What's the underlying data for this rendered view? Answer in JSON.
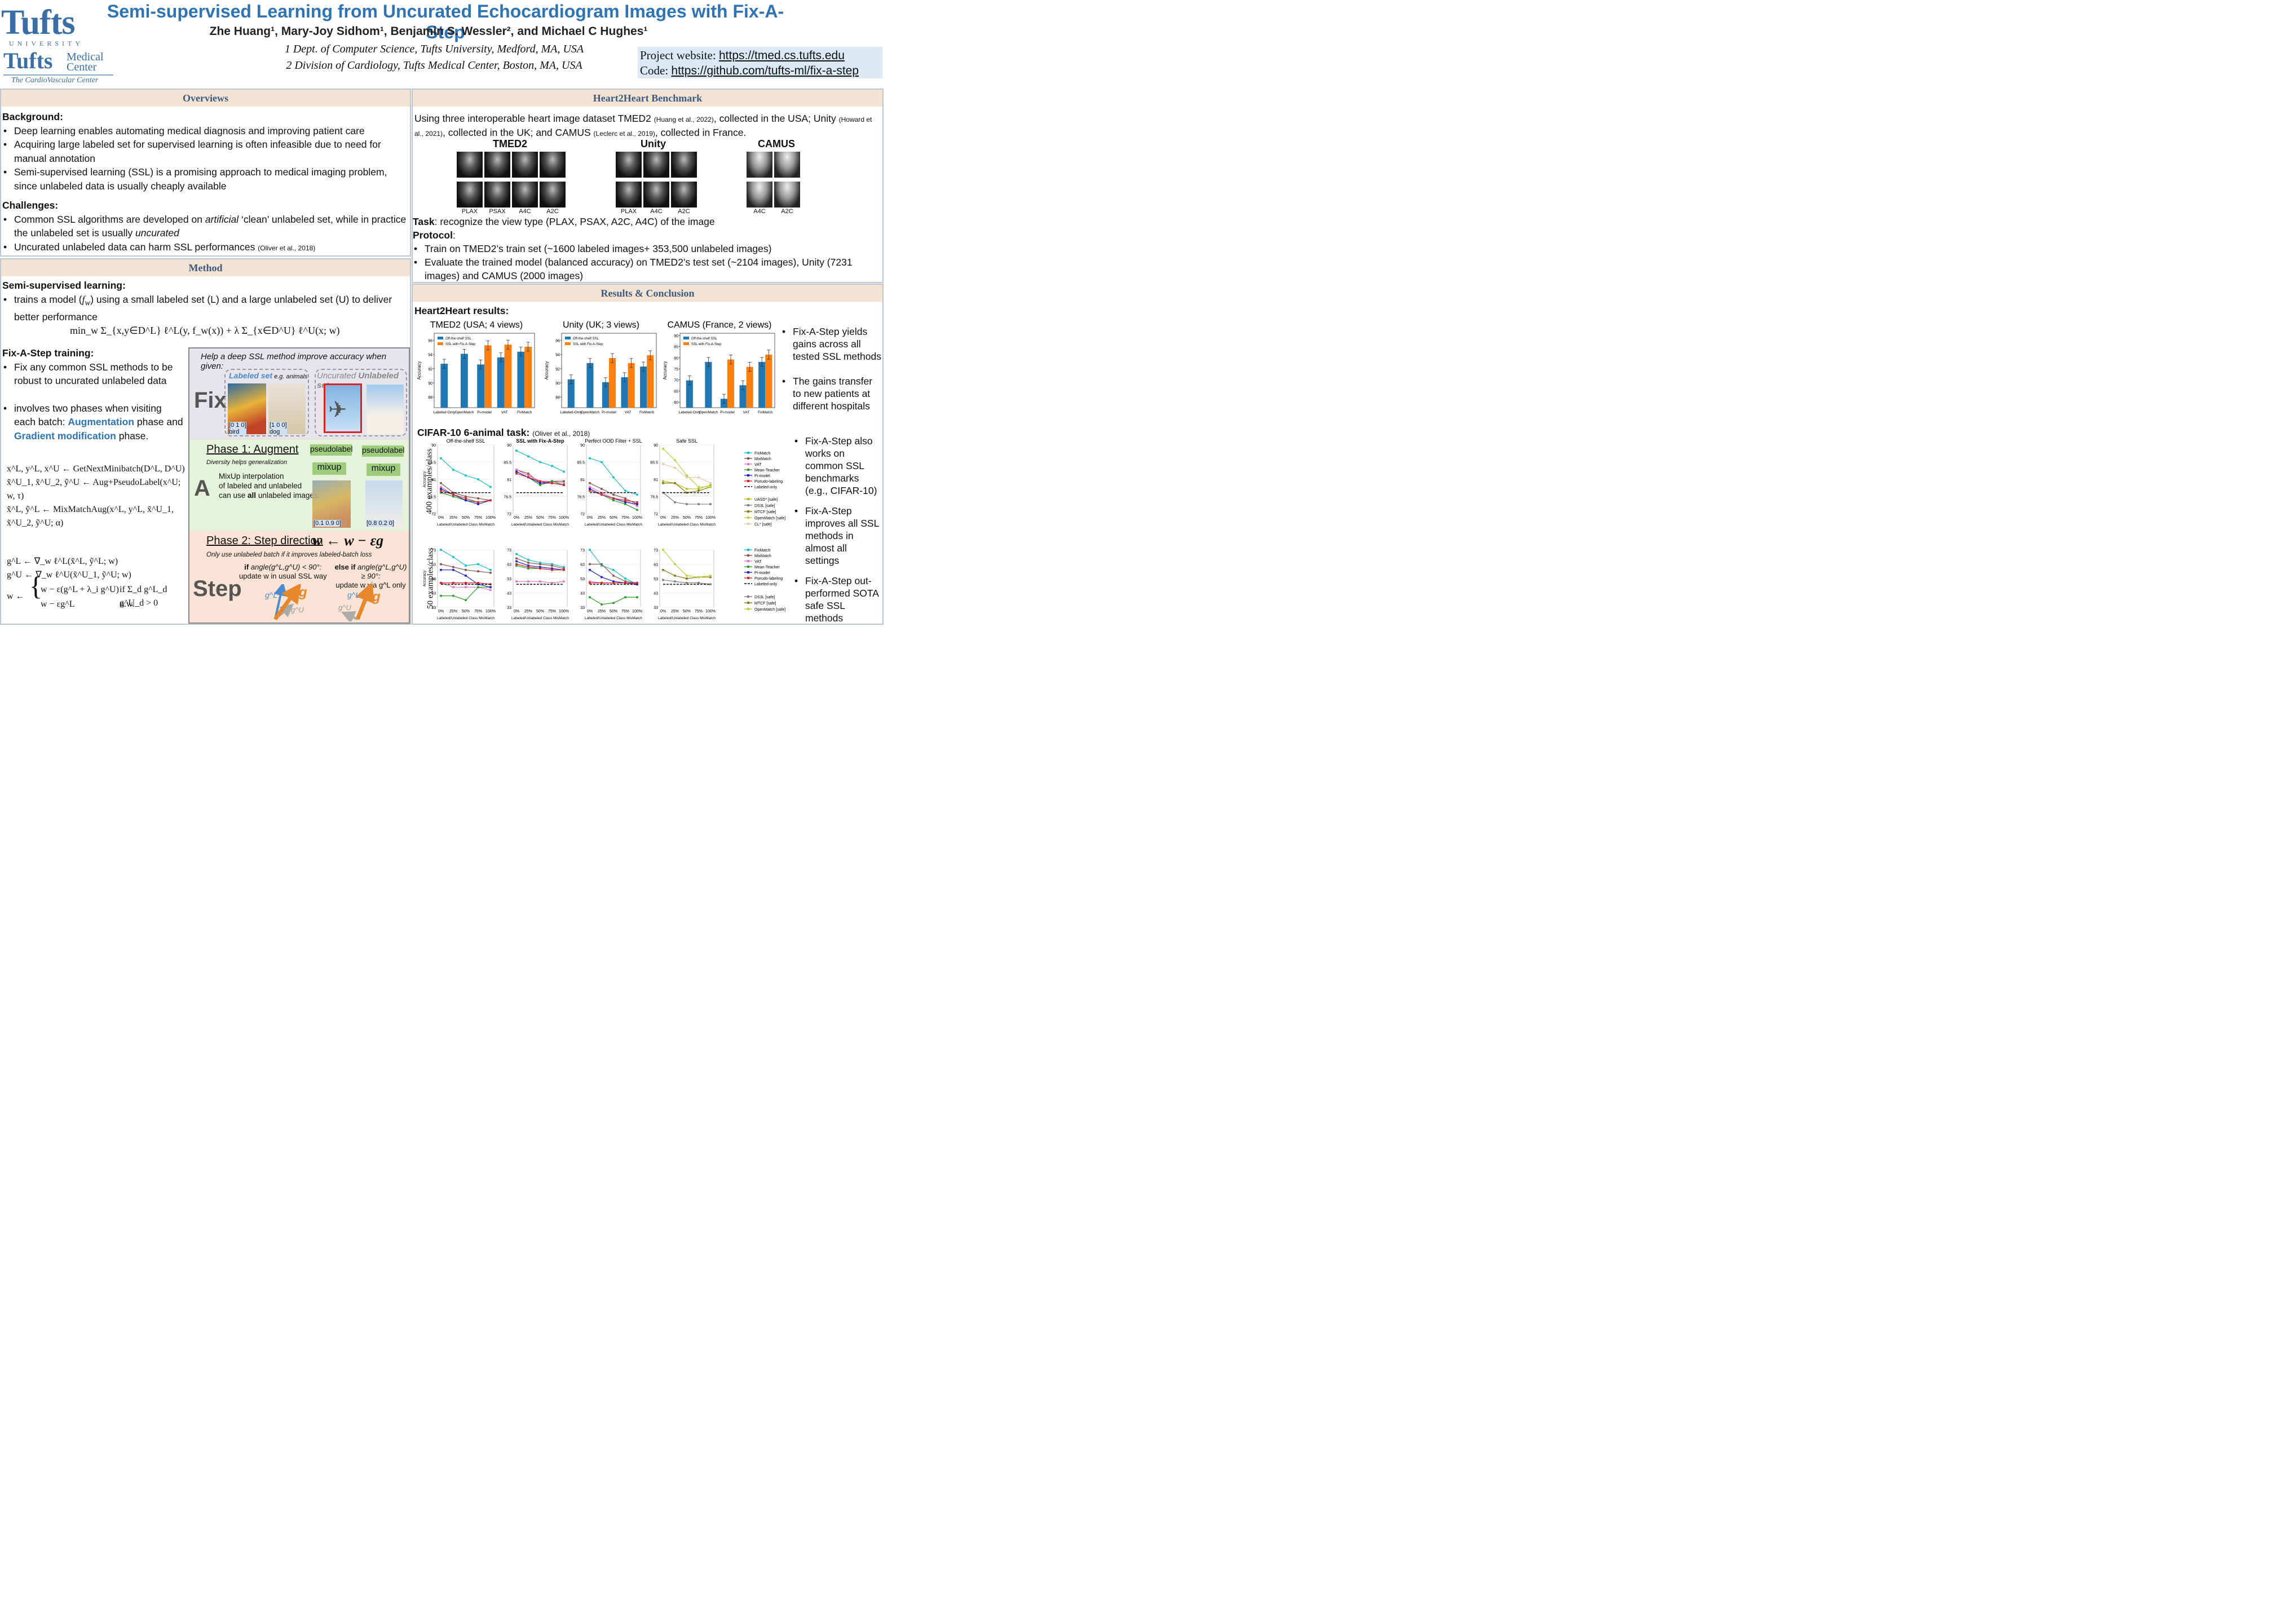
{
  "header": {
    "title": "Semi-supervised Learning from Uncurated Echocardiogram Images with Fix-A-Step",
    "authors": "Zhe Huang¹, Mary-Joy Sidhom¹, Benjamin S. Wessler², and Michael C Hughes¹",
    "aff1": "1 Dept. of Computer Science, Tufts University, Medford, MA, USA",
    "aff2": "2 Division of Cardiology, Tufts Medical Center, Boston, MA, USA",
    "project_label": "Project website: ",
    "project_url": "https://tmed.cs.tufts.edu",
    "code_label": "Code: ",
    "code_url": "https://github.com/tufts-ml/fix-a-step",
    "logo1": "Tufts",
    "logo1_sub": "UNIVERSITY",
    "logo2": "Tufts",
    "logo2_a": "Medical",
    "logo2_b": "Center",
    "logo2_sub": "The CardioVascular Center"
  },
  "overviews": {
    "heading": "Overviews",
    "background_title": "Background:",
    "background": [
      "Deep learning enables automating medical diagnosis and improving patient care",
      "Acquiring large labeled set for supervised learning is often infeasible due to need for manual annotation",
      "Semi-supervised learning (SSL) is a promising approach to medical imaging problem, since unlabeled data is usually cheaply available"
    ],
    "challenges_title": "Challenges:",
    "ch1_a": "Common SSL algorithms are developed on ",
    "ch1_b": "artificial",
    "ch1_c": " ‘clean’ unlabeled set, while in practice the unlabeled set is usually ",
    "ch1_d": "uncurated",
    "ch2": "Uncurated unlabeled data can harm SSL performances ",
    "ch2_cite": "(Oliver et al., 2018)"
  },
  "method": {
    "heading": "Method",
    "ssl_title": "Semi-supervised learning:",
    "ssl_a": "trains a model (",
    "ssl_fw": "f",
    "ssl_w": "w",
    "ssl_b": ") using a small labeled set (L) and a large unlabeled set (U) to deliver better performance",
    "objective": "min_w  Σ_{x,y∈D^L} ℓ^L(y, f_w(x)) + λ Σ_{x∈D^U} ℓ^U(x; w)",
    "fix_title": "Fix-A-Step training:",
    "fix1": "Fix any common SSL methods to be robust to uncurated unlabeled data",
    "fix2_a": "involves two phases when visiting each batch: ",
    "fix2_aug": "Augmentation",
    "fix2_b": " phase and ",
    "fix2_grad": "Gradient modification",
    "fix2_c": " phase.",
    "algo1": "x^L, y^L, x^U ← GetNextMinibatch(D^L, D^U)",
    "algo2": "x̃^U_1, x̃^U_2, ỹ^U ← Aug+PseudoLabel(x^U; w, τ)",
    "algo3": "x̃^L, ỹ^L ← MixMatchAug(x^L, y^L, x̃^U_1, x̃^U_2, ỹ^U; α)",
    "algo4": "g^L ← ∇_w ℓ^L(x̃^L, ỹ^L; w)",
    "algo5": "g^U ← ∇_w ℓ^U(x̃^U_1, ỹ^U; w)",
    "algo6a": "w − ε(g^L + λ_i g^U)",
    "algo6b": "if Σ_d g^L_d g^U_d > 0",
    "algo7a": "w − εg^L",
    "algo7b": "o.w.",
    "algo_w": "w ←"
  },
  "diagram": {
    "header": "Help a deep SSL method improve accuracy when given:",
    "fix": "Fix",
    "labeled": "Labeled set",
    "labeled_eg": " e.g. animals",
    "uncurated": "Uncurated ",
    "unlabeled": "Unlabeled set",
    "bird_vec": "[0 1 0]",
    "bird": "bird",
    "dog_vec": "[1 0 0]",
    "dog": "dog",
    "pseudo1": "pseudolabel",
    "pseudo2": "pseudolabel",
    "mix1": "mixup",
    "mix2": "mixup",
    "a": "A",
    "phase1": "Phase 1: Augment",
    "phase1_sub": "Diversity helps generalization",
    "mix_text1": "MixUp interpolation",
    "mix_text2": "of labeled and unlabeled",
    "mix_text3a": "can use ",
    "mix_text3b": "all",
    "mix_text3c": " unlabeled images.",
    "out1": "[0.1  0.9  0]",
    "out2": "[0.8  0.2  0]",
    "step": "Step",
    "phase2": "Phase 2: Step direction",
    "update_rule": "w ← w − εg",
    "phase2_sub": "Only use unlabeled batch if it improves labeled-batch loss",
    "if_a": "if ",
    "if_b": "angle(g^L,g^U) < 90°:",
    "if_c": "update w in usual SSL way",
    "else_a": "else if ",
    "else_b": "angle(g^L,g^U) ≥ 90°:",
    "else_c": "update w via g^L only",
    "gL": "g^L",
    "gU": "g^U",
    "g": "g"
  },
  "benchmark": {
    "heading": "Heart2Heart Benchmark",
    "intro_a": "Using three interoperable heart image dataset TMED2 ",
    "cite1": "(Huang et al., 2022)",
    "intro_b": ", collected in the USA; Unity ",
    "cite2": "(Howard et al., 2021)",
    "intro_c": ", collected in the UK; and CAMUS ",
    "cite3": "(Leclerc et al., 2019)",
    "intro_d": ", collected in France.",
    "datasets": [
      "TMED2",
      "Unity",
      "CAMUS"
    ],
    "tmed_labels": [
      "PLAX",
      "PSAX",
      "A4C",
      "A2C"
    ],
    "unity_labels": [
      "PLAX",
      "A4C",
      "A2C"
    ],
    "camus_labels": [
      "A4C",
      "A2C"
    ],
    "task_b": "Task",
    "task": ": recognize the view type (PLAX, PSAX, A2C, A4C) of the image",
    "protocol_b": "Protocol",
    "protocol": ":",
    "p1": "Train on TMED2’s train set (~1600 labeled images+ 353,500 unlabeled images)",
    "p2": "Evaluate the trained model (balanced accuracy) on TMED2’s test set (~2104 images), Unity (7231 images) and CAMUS (2000 images)"
  },
  "results": {
    "heading": "Results & Conclusion",
    "h2h": "Heart2Heart results:",
    "cifar": "CIFAR-10 6-animal task: ",
    "cifar_cite": "(Oliver et al., 2018)",
    "row1_label": "400 examples/class",
    "row2_label": "50 examples/class",
    "conclusions": [
      "Fix-A-Step yields gains across all tested SSL methods",
      "The gains transfer to new patients at different hospitals",
      "Fix-A-Step also works on common SSL benchmarks (e.g., CIFAR-10)",
      "Fix-A-Step improves all SSL methods in almost all settings",
      "Fix-A-Step out-performed SOTA safe SSL methods"
    ]
  },
  "colors": {
    "blue": "#1f77b4",
    "orange": "#ff7f0e",
    "title": "#2e74b5"
  },
  "chart_data": [
    {
      "type": "bar",
      "title": "TMED2 (USA; 4 views)",
      "ylabel": "Accuracy",
      "ylim": [
        86.5,
        97
      ],
      "yticks": [
        88,
        90,
        92,
        94,
        96
      ],
      "categories": [
        "Labeled-Only",
        "OpenMatch",
        "Pi-model",
        "VAT",
        "FixMatch"
      ],
      "series": [
        {
          "name": "Off-the-shelf SSL",
          "values": [
            92.7,
            94.1,
            92.6,
            93.6,
            94.4
          ]
        },
        {
          "name": "SSL with Fix-A-Step",
          "values": [
            null,
            null,
            95.3,
            95.4,
            95.1
          ]
        }
      ]
    },
    {
      "type": "bar",
      "title": "Unity (UK; 3 views)",
      "ylabel": "Accuracy",
      "ylim": [
        86.5,
        97
      ],
      "yticks": [
        88,
        90,
        92,
        94,
        96
      ],
      "categories": [
        "Labeled-Only",
        "OpenMatch",
        "Pi-model",
        "VAT",
        "FixMatch"
      ],
      "series": [
        {
          "name": "Off-the-shelf SSL",
          "values": [
            90.5,
            92.8,
            90.1,
            90.8,
            92.3
          ]
        },
        {
          "name": "SSL with Fix-A-Step",
          "values": [
            null,
            null,
            93.5,
            92.8,
            93.9
          ]
        }
      ]
    },
    {
      "type": "bar",
      "title": "CAMUS (France, 2 views)",
      "ylabel": "Accuracy",
      "ylim": [
        57.5,
        91
      ],
      "yticks": [
        60,
        65,
        70,
        75,
        80,
        85,
        90
      ],
      "categories": [
        "Labeled-Only",
        "OpenMatch",
        "Pi-model",
        "VAT",
        "FixMatch"
      ],
      "series": [
        {
          "name": "Off-the-shelf SSL",
          "values": [
            69.8,
            78.1,
            61.5,
            67.6,
            78.1
          ]
        },
        {
          "name": "SSL with Fix-A-Step",
          "values": [
            null,
            null,
            79.2,
            75.9,
            81.4
          ]
        }
      ]
    },
    {
      "type": "line",
      "title": "Off-the-shelf SSL",
      "xlabel": "Labeled/Unlabeled Class MisMatch",
      "ylabel": "Accuracy",
      "ylim": [
        72,
        90
      ],
      "yticks": [
        72.0,
        76.5,
        81.0,
        85.5,
        90.0
      ],
      "x": [
        "0%",
        "25%",
        "50%",
        "75%",
        "100%"
      ],
      "series": [
        {
          "name": "FixMatch",
          "values": [
            86.5,
            83.5,
            82.0,
            81.0,
            79.0
          ]
        },
        {
          "name": "MixMatch",
          "values": [
            80.0,
            77.5,
            76.5,
            76.0,
            75.5
          ]
        },
        {
          "name": "VAT",
          "values": [
            79.0,
            77.0,
            75.5,
            75.0,
            75.5
          ]
        },
        {
          "name": "Mean-Teacher",
          "values": [
            77.5,
            76.5,
            75.5,
            75.0,
            75.5
          ]
        },
        {
          "name": "Pi-model",
          "values": [
            78.5,
            77.0,
            75.5,
            74.5,
            75.5
          ]
        },
        {
          "name": "Pseudo-labeling",
          "values": [
            78.0,
            77.0,
            76.0,
            75.0,
            75.5
          ]
        },
        {
          "name": "Labeled-only",
          "values": [
            77.5,
            77.5,
            77.5,
            77.5,
            77.5
          ]
        }
      ]
    },
    {
      "type": "line",
      "title": "SSL with Fix-A-Step",
      "xlabel": "Labeled/Unlabeled Class MisMatch",
      "ylim": [
        72,
        90
      ],
      "yticks": [
        72.0,
        76.5,
        81.0,
        85.5,
        90.0
      ],
      "x": [
        "0%",
        "25%",
        "50%",
        "75%",
        "100%"
      ],
      "series": [
        {
          "name": "FixMatch",
          "values": [
            88.5,
            87.0,
            85.5,
            84.5,
            83.0
          ]
        },
        {
          "name": "MixMatch",
          "values": [
            83.5,
            82.5,
            80.0,
            80.5,
            80.5
          ]
        },
        {
          "name": "VAT",
          "values": [
            83.5,
            82.0,
            80.5,
            80.5,
            80.0
          ]
        },
        {
          "name": "Mean-Teacher",
          "values": [
            83.0,
            81.5,
            79.5,
            80.5,
            79.5
          ]
        },
        {
          "name": "Pi-model",
          "values": [
            83.0,
            81.5,
            80.0,
            80.0,
            79.5
          ]
        },
        {
          "name": "Pseudo-labeling",
          "values": [
            82.5,
            81.5,
            80.5,
            80.0,
            79.5
          ]
        },
        {
          "name": "Labeled-only",
          "values": [
            77.5,
            77.5,
            77.5,
            77.5,
            77.5
          ]
        }
      ]
    },
    {
      "type": "line",
      "title": "Perfect OOD Filter + SSL",
      "xlabel": "Labeled/Unlabeled Class MisMatch",
      "ylim": [
        72,
        90
      ],
      "yticks": [
        72.0,
        76.5,
        81.0,
        85.5,
        90.0
      ],
      "x": [
        "0%",
        "25%",
        "50%",
        "75%",
        "100%"
      ],
      "series": [
        {
          "name": "FixMatch",
          "values": [
            86.5,
            85.5,
            81.5,
            78.0,
            77.0
          ]
        },
        {
          "name": "MixMatch",
          "values": [
            80.0,
            78.5,
            77.0,
            76.0,
            74.5
          ]
        },
        {
          "name": "VAT",
          "values": [
            79.0,
            77.5,
            76.0,
            75.5,
            74.0
          ]
        },
        {
          "name": "Mean-Teacher",
          "values": [
            78.5,
            77.0,
            75.5,
            74.5,
            73.0
          ]
        },
        {
          "name": "Pi-model",
          "values": [
            78.5,
            77.0,
            76.0,
            75.0,
            74.5
          ]
        },
        {
          "name": "Pseudo-labeling",
          "values": [
            78.0,
            77.0,
            76.0,
            75.5,
            75.0
          ]
        },
        {
          "name": "Labeled-only",
          "values": [
            77.5,
            77.5,
            77.5,
            77.5,
            77.5
          ]
        }
      ]
    },
    {
      "type": "line",
      "title": "Safe SSL",
      "xlabel": "Labeled/Unlabeled Class MisMatch",
      "ylim": [
        72,
        90
      ],
      "yticks": [
        72.0,
        76.5,
        81.0,
        85.5,
        90.0
      ],
      "x": [
        "0%",
        "25%",
        "50%",
        "75%",
        "100%"
      ],
      "series": [
        {
          "name": "UASD* [safe]",
          "values": [
            80.5,
            80.0,
            78.5,
            78.5,
            79.5
          ]
        },
        {
          "name": "DS3L [safe]",
          "values": [
            77.5,
            75.0,
            74.5,
            74.5,
            74.5
          ]
        },
        {
          "name": "MTCF [safe]",
          "values": [
            80.0,
            80.0,
            77.5,
            78.0,
            79.0
          ]
        },
        {
          "name": "OpenMatch [safe]",
          "values": [
            89.0,
            86.0,
            82.0,
            79.0,
            79.0
          ]
        },
        {
          "name": "CL* [safe]",
          "values": [
            85.0,
            84.0,
            81.5,
            81.5,
            80.0
          ]
        },
        {
          "name": "Labeled-only",
          "values": [
            77.5,
            77.5,
            77.5,
            77.5,
            77.5
          ]
        }
      ]
    },
    {
      "type": "line",
      "title": "",
      "xlabel": "Labeled/Unlabeled Class MisMatch",
      "ylabel": "Accuracy",
      "ylim": [
        33,
        73
      ],
      "yticks": [
        33,
        43,
        53,
        63,
        73
      ],
      "x": [
        "0%",
        "25%",
        "50%",
        "75%",
        "100%"
      ],
      "series": [
        {
          "name": "FixMatch",
          "values": [
            73,
            68,
            62,
            63,
            59
          ]
        },
        {
          "name": "MixMatch",
          "values": [
            63,
            61,
            59,
            58,
            57
          ]
        },
        {
          "name": "VAT",
          "values": [
            50,
            47,
            47,
            47,
            45
          ]
        },
        {
          "name": "Mean-Teacher",
          "values": [
            41,
            41,
            38,
            47,
            47
          ]
        },
        {
          "name": "Pi-model",
          "values": [
            59,
            59,
            55,
            49,
            47
          ]
        },
        {
          "name": "Pseudo-labeling",
          "values": [
            50,
            50,
            50,
            50,
            49
          ]
        },
        {
          "name": "Labeled-only",
          "values": [
            49,
            49,
            49,
            49,
            49
          ]
        }
      ]
    },
    {
      "type": "line",
      "title": "",
      "xlabel": "Labeled/Unlabeled Class MisMatch",
      "ylim": [
        33,
        73
      ],
      "yticks": [
        33,
        43,
        53,
        63,
        73
      ],
      "x": [
        "0%",
        "25%",
        "50%",
        "75%",
        "100%"
      ],
      "series": [
        {
          "name": "FixMatch",
          "values": [
            70,
            66,
            64,
            63,
            61
          ]
        },
        {
          "name": "MixMatch",
          "values": [
            67,
            64,
            63,
            62,
            60
          ]
        },
        {
          "name": "VAT",
          "values": [
            51,
            51,
            51,
            50,
            51
          ]
        },
        {
          "name": "Mean-Teacher",
          "values": [
            62,
            60,
            60,
            59,
            59
          ]
        },
        {
          "name": "Pi-model",
          "values": [
            65,
            62,
            61,
            60,
            59
          ]
        },
        {
          "name": "Pseudo-labeling",
          "values": [
            63,
            61,
            60,
            59,
            59
          ]
        },
        {
          "name": "Labeled-only",
          "values": [
            49,
            49,
            49,
            49,
            49
          ]
        }
      ]
    },
    {
      "type": "line",
      "title": "",
      "xlabel": "Labeled/Unlabeled Class MisMatch",
      "ylim": [
        33,
        73
      ],
      "yticks": [
        33,
        43,
        53,
        63,
        73
      ],
      "x": [
        "0%",
        "25%",
        "50%",
        "75%",
        "100%"
      ],
      "series": [
        {
          "name": "FixMatch",
          "values": [
            73,
            62,
            59,
            53,
            49
          ]
        },
        {
          "name": "MixMatch",
          "values": [
            63,
            63,
            55,
            51,
            50
          ]
        },
        {
          "name": "VAT",
          "values": [
            51,
            50,
            50,
            50,
            49
          ]
        },
        {
          "name": "Mean-Teacher",
          "values": [
            40,
            35,
            36,
            40,
            40
          ]
        },
        {
          "name": "Pi-model",
          "values": [
            59,
            54,
            51,
            50,
            49
          ]
        },
        {
          "name": "Pseudo-labeling",
          "values": [
            50,
            50,
            50,
            50,
            50
          ]
        },
        {
          "name": "Labeled-only",
          "values": [
            49,
            49,
            49,
            49,
            49
          ]
        }
      ]
    },
    {
      "type": "line",
      "title": "",
      "xlabel": "Labeled/Unlabeled Class MisMatch",
      "ylim": [
        33,
        73
      ],
      "yticks": [
        33,
        43,
        53,
        63,
        73
      ],
      "x": [
        "0%",
        "25%",
        "50%",
        "75%",
        "100%"
      ],
      "series": [
        {
          "name": "DS3L [safe]",
          "values": [
            52,
            51,
            50,
            50,
            49
          ]
        },
        {
          "name": "MTCF [safe]",
          "values": [
            59,
            55,
            53,
            54,
            54
          ]
        },
        {
          "name": "OpenMatch [safe]",
          "values": [
            73,
            63,
            55,
            54,
            55
          ]
        },
        {
          "name": "Labeled-only",
          "values": [
            49,
            49,
            49,
            49,
            49
          ]
        }
      ]
    }
  ]
}
